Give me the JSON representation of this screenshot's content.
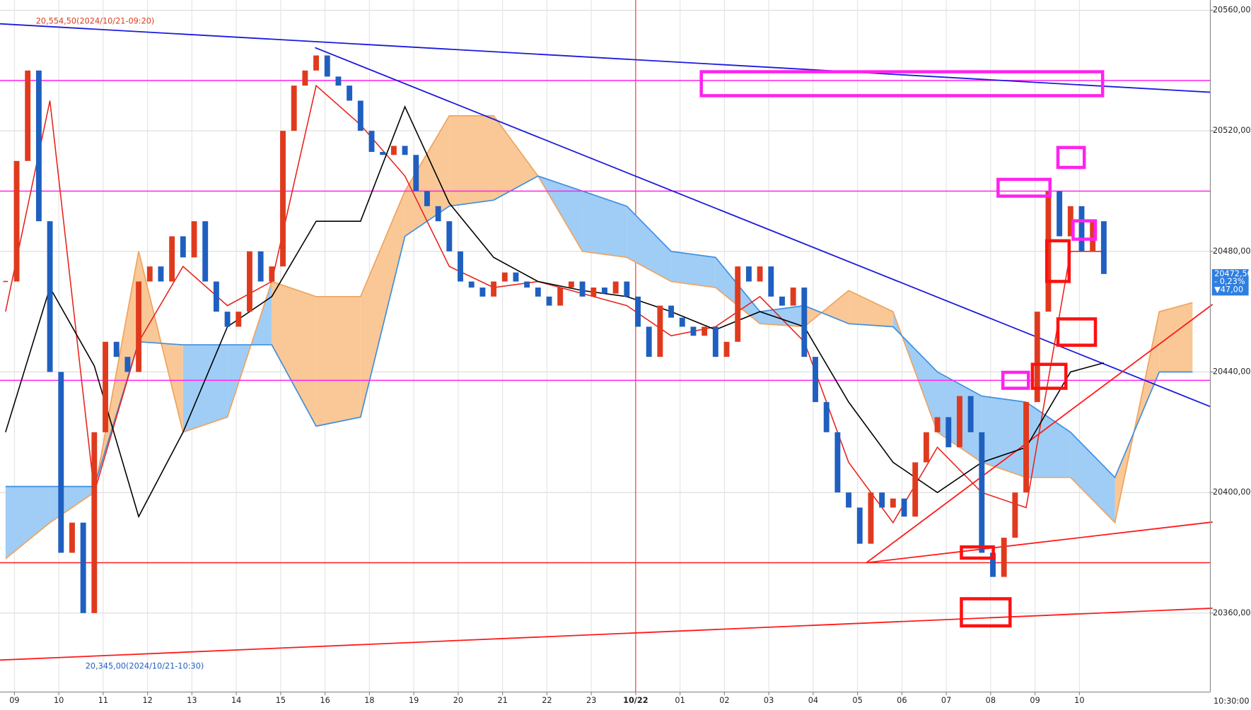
{
  "chart_data": {
    "type": "candlestick",
    "xlim": [
      -0.5,
      108.6
    ],
    "ylim": [
      20333.8,
      20563.4
    ],
    "xticks": [
      {
        "value": 0.8,
        "label": "09"
      },
      {
        "value": 4.8,
        "label": "10"
      },
      {
        "value": 8.8,
        "label": "11"
      },
      {
        "value": 12.8,
        "label": "12"
      },
      {
        "value": 16.8,
        "label": "13"
      },
      {
        "value": 20.8,
        "label": "14"
      },
      {
        "value": 24.8,
        "label": "15"
      },
      {
        "value": 28.8,
        "label": "16"
      },
      {
        "value": 32.8,
        "label": "18"
      },
      {
        "value": 36.8,
        "label": "19"
      },
      {
        "value": 40.8,
        "label": "20"
      },
      {
        "value": 44.8,
        "label": "21"
      },
      {
        "value": 48.8,
        "label": "22"
      },
      {
        "value": 52.8,
        "label": "23"
      },
      {
        "value": 56.8,
        "label": "10/22"
      },
      {
        "value": 60.8,
        "label": "01"
      },
      {
        "value": 64.8,
        "label": "02"
      },
      {
        "value": 68.8,
        "label": "03"
      },
      {
        "value": 72.8,
        "label": "04"
      },
      {
        "value": 76.8,
        "label": "05"
      },
      {
        "value": 80.8,
        "label": "06"
      },
      {
        "value": 84.8,
        "label": "07"
      },
      {
        "value": 88.8,
        "label": "08"
      },
      {
        "value": 92.8,
        "label": "09"
      },
      {
        "value": 96.8,
        "label": "10"
      }
    ],
    "yticks": [
      {
        "value": 20360,
        "label": "20360,00"
      },
      {
        "value": 20400,
        "label": "20400,00"
      },
      {
        "value": 20440,
        "label": "20440,00"
      },
      {
        "value": 20480,
        "label": "20480,00"
      },
      {
        "value": 20520,
        "label": "20520,00"
      },
      {
        "value": 20560,
        "label": "20560,00"
      }
    ],
    "time_label": "10:30:00",
    "separator_x": 56.8,
    "separator_color": "#ff3030",
    "up_color": "#e03a1e",
    "down_color": "#1f5fc0",
    "values": [
      20470,
      20510,
      20540,
      20490,
      20440,
      20380,
      20390,
      20360,
      20420,
      20450,
      20445,
      20440,
      20470,
      20475,
      20470,
      20485,
      20478,
      20490,
      20470,
      20460,
      20455,
      20460,
      20480,
      20470,
      20475,
      20520,
      20535,
      20540,
      20545,
      20538,
      20535,
      20530,
      20520,
      20513,
      20512,
      20515,
      20512,
      20500,
      20495,
      20490,
      20480,
      20470,
      20468,
      20465,
      20470,
      20473,
      20470,
      20468,
      20465,
      20462,
      20468,
      20470,
      20465,
      20468,
      20466,
      20470,
      20465,
      20455,
      20445,
      20462,
      20458,
      20455,
      20452,
      20455,
      20445,
      20450,
      20475,
      20470,
      20475,
      20465,
      20462,
      20468,
      20445,
      20430,
      20420,
      20400,
      20395,
      20383,
      20400,
      20395,
      20398,
      20392,
      20410,
      20420,
      20425,
      20415,
      20432,
      20420,
      20380,
      20372,
      20385,
      20400,
      20430,
      20460,
      20500,
      20485,
      20495,
      20480,
      20490,
      20472.5
    ],
    "high_label": "20,554,50(2024/10/21-09:20)",
    "low_label": "20,345,00(2024/10/21-10:30)",
    "last_price": {
      "value": 20472.5,
      "label": "20472,50",
      "change_pct": "- 0,23%",
      "change": "▼47,00"
    },
    "lines": [
      {
        "color": "#e8241c",
        "x": [
          0,
          4,
          8,
          12,
          16,
          20,
          24,
          28,
          32,
          36,
          40,
          44,
          48,
          52,
          56,
          60,
          64,
          68,
          72,
          76,
          80,
          84,
          88,
          92,
          96,
          99
        ],
        "values": [
          20460,
          20530,
          20400,
          20450,
          20475,
          20462,
          20470,
          20535,
          20522,
          20505,
          20475,
          20468,
          20470,
          20466,
          20462,
          20452,
          20455,
          20465,
          20450,
          20410,
          20390,
          20415,
          20400,
          20395,
          20480,
          20480
        ]
      },
      {
        "color": "#000000",
        "x": [
          0,
          4,
          8,
          12,
          16,
          20,
          24,
          28,
          32,
          36,
          40,
          44,
          48,
          52,
          56,
          60,
          64,
          68,
          72,
          76,
          80,
          84,
          88,
          92,
          96,
          99
        ],
        "values": [
          20420,
          20468,
          20442,
          20392,
          20420,
          20455,
          20465,
          20490,
          20490,
          20528,
          20496,
          20478,
          20470,
          20467,
          20465,
          20460,
          20454,
          20460,
          20455,
          20430,
          20410,
          20400,
          20410,
          20415,
          20440,
          20443
        ]
      }
    ],
    "cloud": {
      "x": [
        0,
        4,
        8,
        12,
        16,
        20,
        24,
        28,
        32,
        36,
        40,
        44,
        48,
        52,
        56,
        60,
        64,
        68,
        72,
        76,
        80,
        84,
        88,
        92,
        96,
        100,
        104,
        107
      ],
      "span_a": [
        20378,
        20390,
        20400,
        20480,
        20420,
        20425,
        20470,
        20465,
        20465,
        20500,
        20525,
        20525,
        20505,
        20480,
        20478,
        20470,
        20468,
        20456,
        20455,
        20467,
        20460,
        20420,
        20410,
        20405,
        20405,
        20390,
        20460,
        20463
      ],
      "span_b": [
        20402,
        20402,
        20402,
        20450,
        20449,
        20449,
        20449,
        20422,
        20425,
        20485,
        20495,
        20497,
        20505,
        20500,
        20495,
        20480,
        20478,
        20460,
        20462,
        20456,
        20455,
        20440,
        20432,
        20430,
        20420,
        20405,
        20440,
        20440
      ],
      "color_a": "#f0a35e",
      "color_b": "#3d8fe0",
      "fill_a": "#f9c896",
      "fill_b": "#9fcdf5"
    },
    "h_lines": [
      {
        "value": 20536.7,
        "color": "#ff22ee"
      },
      {
        "value": 20500,
        "color": "#ff22ee"
      },
      {
        "value": 20437.2,
        "color": "#ff22ee"
      },
      {
        "value": 20376.7,
        "color": "#ff1a1a"
      }
    ],
    "trend_lines": [
      {
        "color": "#1a1adf",
        "x": [
          -0.5,
          108.6
        ],
        "y": [
          20555.5,
          20532.8
        ]
      },
      {
        "color": "#1a1adf",
        "x": [
          27.9,
          108.6
        ],
        "y": [
          20547.6,
          20428.5
        ]
      },
      {
        "color": "#ff1a1a",
        "x": [
          -0.5,
          108.8
        ],
        "y": [
          20344.4,
          20361.6
        ]
      },
      {
        "color": "#ff1a1a",
        "x": [
          77.6,
          108.8
        ],
        "y": [
          20376.7,
          20390.2
        ]
      },
      {
        "color": "#ff1a1a",
        "x": [
          77.6,
          108.8
        ],
        "y": [
          20376.7,
          20462.4
        ]
      }
    ]
  }
}
